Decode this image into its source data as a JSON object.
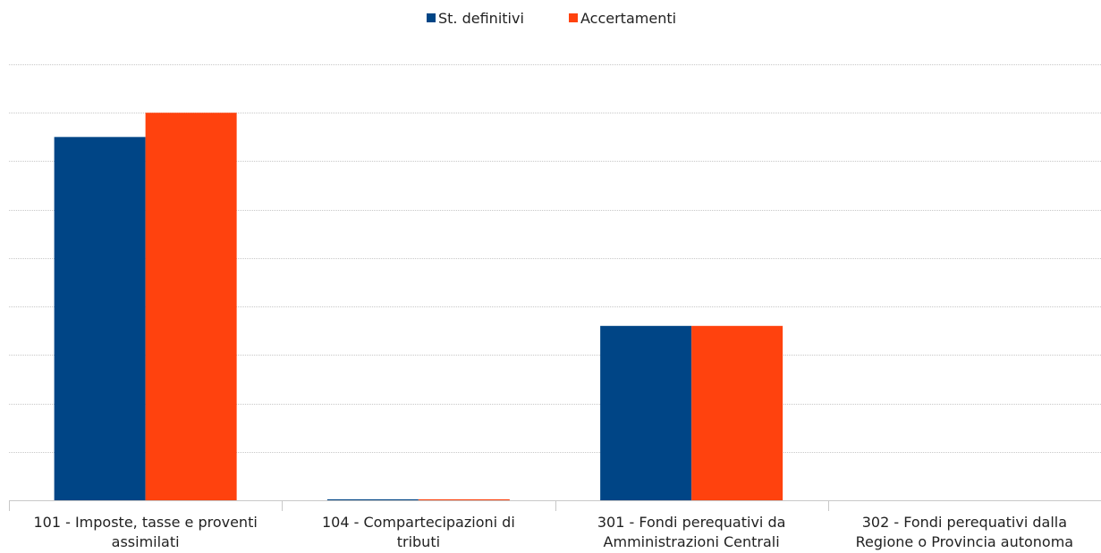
{
  "chart_data": {
    "type": "bar",
    "title": "",
    "xlabel": "",
    "ylabel": "",
    "categories": [
      [
        "101 - Imposte, tasse e proventi",
        "assimilati"
      ],
      [
        "104 - Compartecipazioni di",
        "tributi"
      ],
      [
        "301 - Fondi perequativi da",
        "Amministrazioni Centrali"
      ],
      [
        "302 - Fondi perequativi dalla",
        "Regione o Provincia autonoma"
      ]
    ],
    "series": [
      {
        "name": "St. definitivi",
        "color": "#004586",
        "values": [
          7.5,
          0.02,
          3.6,
          0
        ]
      },
      {
        "name": "Accertamenti",
        "color": "#ff420e",
        "values": [
          8.0,
          0.02,
          3.6,
          0
        ]
      }
    ],
    "ylim": [
      0,
      9
    ],
    "y_ticks_shown": false,
    "grid": true,
    "legend_position": "top"
  }
}
